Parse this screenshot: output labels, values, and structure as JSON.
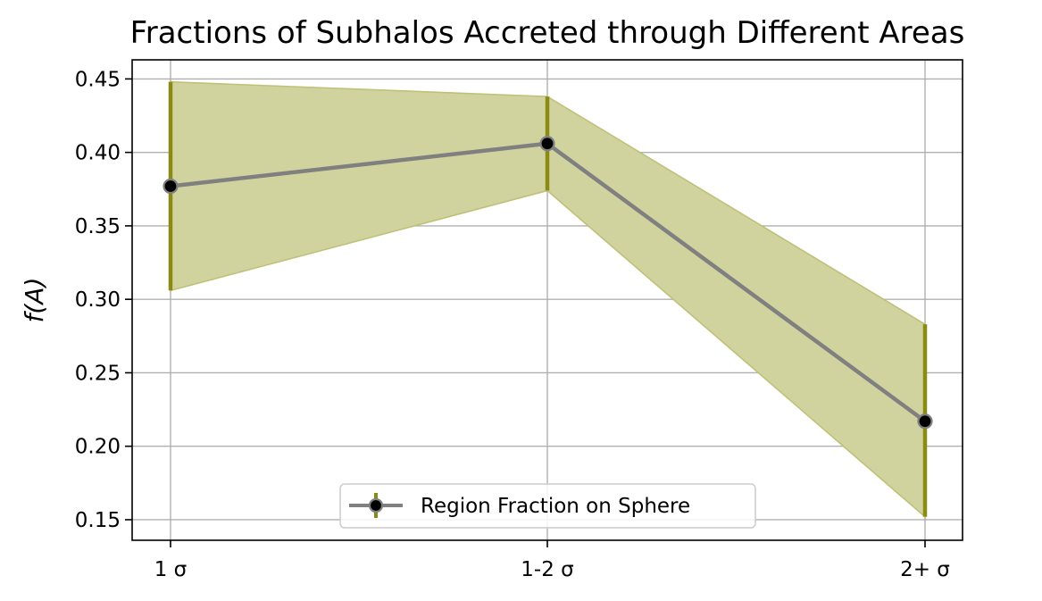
{
  "chart_data": {
    "type": "line",
    "title": "Fractions of Subhalos Accreted through Different Areas",
    "xlabel": "",
    "ylabel": "f(A)",
    "categories": [
      "1 σ",
      "1-2 σ",
      "2+ σ"
    ],
    "series": [
      {
        "name": "Region Fraction on Sphere",
        "values": [
          0.377,
          0.406,
          0.217
        ],
        "lower": [
          0.306,
          0.374,
          0.152
        ],
        "upper": [
          0.448,
          0.438,
          0.283
        ]
      }
    ],
    "ylim": [
      0.136,
      0.463
    ],
    "yticks": [
      "0.15",
      "0.20",
      "0.25",
      "0.30",
      "0.35",
      "0.40",
      "0.45"
    ],
    "grid": true,
    "legend_position": "lower center",
    "colors": {
      "line": "#808080",
      "marker_face": "#000000",
      "marker_edge": "#808080",
      "errorbar": "#8b8b13",
      "band_fill": "#d1d39f",
      "band_edge": "#bfc178",
      "grid": "#b0b0b0"
    }
  }
}
